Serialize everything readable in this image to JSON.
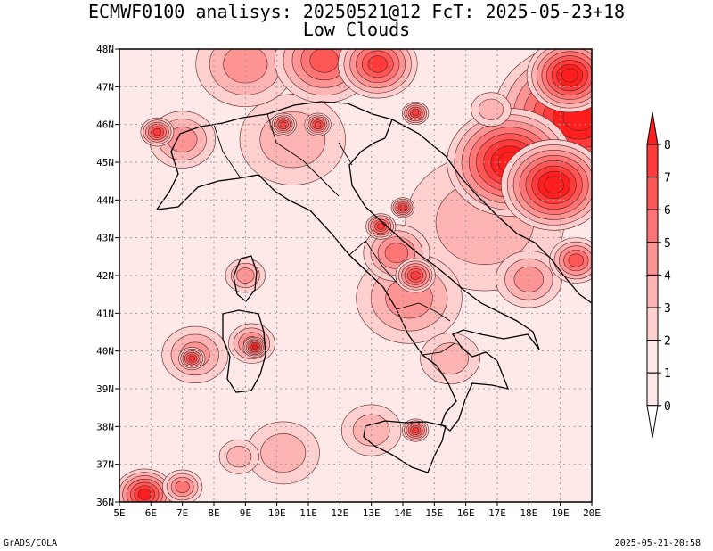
{
  "header": {
    "title_line1": "ECMWF0100 analisys: 20250521@12 FcT: 2025-05-23+18",
    "title_line2": "Low Clouds"
  },
  "footer": {
    "left": "GrADS/COLA",
    "right": "2025-05-21-20:58"
  },
  "chart_data": {
    "type": "heatmap",
    "title": "ECMWF0100 analisys: 20250521@12 FcT: 2025-05-23+18",
    "subtitle": "Low Clouds",
    "x_ticks": [
      "5E",
      "6E",
      "7E",
      "8E",
      "9E",
      "10E",
      "11E",
      "12E",
      "13E",
      "14E",
      "15E",
      "16E",
      "17E",
      "18E",
      "19E",
      "20E"
    ],
    "y_ticks": [
      "48N",
      "47N",
      "46N",
      "45N",
      "44N",
      "43N",
      "42N",
      "41N",
      "40N",
      "39N",
      "38N",
      "37N",
      "36N"
    ],
    "xlim": [
      5,
      20
    ],
    "ylim": [
      36,
      48
    ],
    "grid": true,
    "colorbar": {
      "labels": [
        "0",
        "1",
        "2",
        "3",
        "4",
        "5",
        "6",
        "7",
        "8"
      ],
      "colors": [
        "#ffe8e8",
        "#ffd0d0",
        "#ffb4b4",
        "#ff9494",
        "#ff7474",
        "#ff5656",
        "#ff3a3a",
        "#ff1e1e"
      ],
      "placement": "right"
    },
    "cloud_patches": [
      {
        "lon": 16.6,
        "lat": 43.4,
        "r": 2.4,
        "level": 2
      },
      {
        "lon": 14.2,
        "lat": 41.4,
        "r": 1.6,
        "level": 3
      },
      {
        "lon": 13.8,
        "lat": 42.6,
        "r": 1.0,
        "level": 4
      },
      {
        "lon": 14.4,
        "lat": 42.0,
        "r": 0.6,
        "level": 6
      },
      {
        "lon": 13.3,
        "lat": 43.3,
        "r": 0.45,
        "level": 6
      },
      {
        "lon": 13.0,
        "lat": 37.9,
        "r": 0.9,
        "level": 2
      },
      {
        "lon": 14.4,
        "lat": 37.9,
        "r": 0.4,
        "level": 6
      },
      {
        "lon": 15.5,
        "lat": 39.8,
        "r": 0.9,
        "level": 2
      },
      {
        "lon": 10.5,
        "lat": 45.6,
        "r": 1.6,
        "level": 2
      },
      {
        "lon": 10.2,
        "lat": 46.0,
        "r": 0.4,
        "level": 6
      },
      {
        "lon": 11.3,
        "lat": 46.0,
        "r": 0.4,
        "level": 6
      },
      {
        "lon": 7.0,
        "lat": 45.6,
        "r": 1.0,
        "level": 3
      },
      {
        "lon": 6.2,
        "lat": 45.8,
        "r": 0.5,
        "level": 6
      },
      {
        "lon": 9.0,
        "lat": 47.6,
        "r": 1.5,
        "level": 3
      },
      {
        "lon": 11.5,
        "lat": 47.7,
        "r": 1.5,
        "level": 5
      },
      {
        "lon": 13.2,
        "lat": 47.6,
        "r": 1.2,
        "level": 6
      },
      {
        "lon": 7.4,
        "lat": 39.9,
        "r": 1.0,
        "level": 3
      },
      {
        "lon": 7.3,
        "lat": 39.8,
        "r": 0.4,
        "level": 6
      },
      {
        "lon": 9.2,
        "lat": 40.2,
        "r": 0.7,
        "level": 4
      },
      {
        "lon": 9.3,
        "lat": 40.1,
        "r": 0.35,
        "level": 7
      },
      {
        "lon": 9.0,
        "lat": 42.0,
        "r": 0.6,
        "level": 3
      },
      {
        "lon": 10.2,
        "lat": 37.3,
        "r": 1.1,
        "level": 2
      },
      {
        "lon": 5.8,
        "lat": 36.2,
        "r": 0.9,
        "level": 7
      },
      {
        "lon": 7.0,
        "lat": 36.4,
        "r": 0.6,
        "level": 4
      },
      {
        "lon": 14.4,
        "lat": 46.3,
        "r": 0.4,
        "level": 6
      },
      {
        "lon": 18.0,
        "lat": 41.9,
        "r": 1.0,
        "level": 3
      },
      {
        "lon": 19.5,
        "lat": 42.4,
        "r": 0.8,
        "level": 5
      },
      {
        "lon": 14.0,
        "lat": 43.8,
        "r": 0.35,
        "level": 6
      },
      {
        "lon": 8.8,
        "lat": 37.2,
        "r": 0.6,
        "level": 2
      },
      {
        "lon": 19.6,
        "lat": 46.2,
        "r": 2.6,
        "level": 8
      },
      {
        "lon": 17.4,
        "lat": 45.0,
        "r": 1.9,
        "level": 8
      },
      {
        "lon": 18.8,
        "lat": 44.4,
        "r": 1.6,
        "level": 8
      },
      {
        "lon": 19.3,
        "lat": 47.3,
        "r": 1.3,
        "level": 8
      },
      {
        "lon": 16.8,
        "lat": 46.4,
        "r": 0.6,
        "level": 2
      }
    ]
  }
}
